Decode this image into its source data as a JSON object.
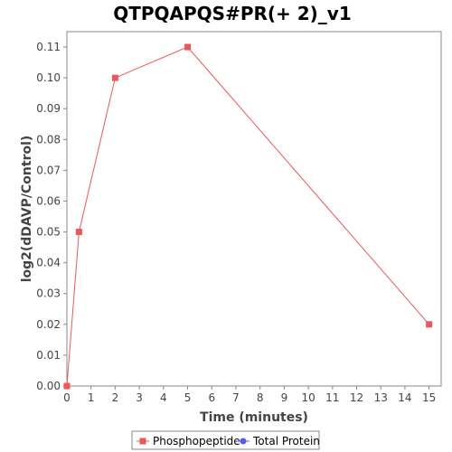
{
  "chart_data": {
    "type": "line",
    "title": "QTPQAPQS#PR(+ 2)_v1",
    "xlabel": "Time (minutes)",
    "ylabel": "log2(dDAVP/Control)",
    "xlim": [
      0,
      15.5
    ],
    "ylim": [
      0,
      0.115
    ],
    "x_ticks": [
      "0",
      "1",
      "2",
      "3",
      "4",
      "5",
      "6",
      "7",
      "8",
      "9",
      "10",
      "11",
      "12",
      "13",
      "14",
      "15"
    ],
    "y_ticks": [
      "0.00",
      "0.01",
      "0.02",
      "0.03",
      "0.04",
      "0.05",
      "0.06",
      "0.07",
      "0.08",
      "0.09",
      "0.10",
      "0.11"
    ],
    "grid": false,
    "legend_position": "bottom",
    "series": [
      {
        "name": "Phosphopeptide",
        "color": "#e8595c",
        "marker": "square",
        "x": [
          0,
          0.5,
          2,
          5,
          15
        ],
        "y": [
          0.0,
          0.05,
          0.1,
          0.11,
          0.02
        ]
      },
      {
        "name": "Total Protein",
        "color": "#5a5ae8",
        "marker": "circle",
        "x": [],
        "y": []
      }
    ]
  }
}
